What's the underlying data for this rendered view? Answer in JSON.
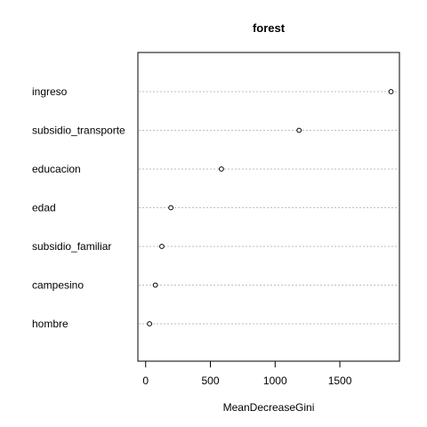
{
  "chart_data": {
    "type": "scatter",
    "title": "forest",
    "xlabel": "MeanDecreaseGini",
    "ylabel": "",
    "xlim": [
      -60,
      1960
    ],
    "xticks": [
      0,
      500,
      1000,
      1500
    ],
    "xtick_labels": [
      "0",
      "500",
      "1000",
      "1500"
    ],
    "grid": "dotted horizontal lines at each category",
    "categories": [
      "ingreso",
      "subsidio_transporte",
      "educacion",
      "edad",
      "subsidio_familiar",
      "campesino",
      "hombre"
    ],
    "values": [
      1895,
      1185,
      585,
      195,
      125,
      75,
      30
    ],
    "colors": {
      "points": "#000000",
      "grid": "#bebebe",
      "axis": "#000000"
    }
  }
}
